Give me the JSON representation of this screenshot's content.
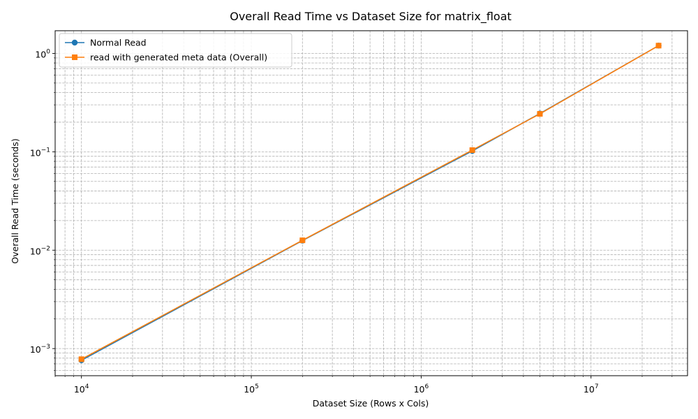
{
  "chart_data": {
    "type": "line",
    "title": "Overall Read Time vs Dataset Size for matrix_float",
    "xlabel": "Dataset Size (Rows x Cols)",
    "ylabel": "Overall Read Time (seconds)",
    "xscale": "log",
    "yscale": "log",
    "xlim": [
      7000,
      37000000
    ],
    "ylim": [
      0.00053,
      1.7
    ],
    "x_ticks": [
      {
        "base": "10",
        "exp": "4",
        "value": 10000
      },
      {
        "base": "10",
        "exp": "5",
        "value": 100000
      },
      {
        "base": "10",
        "exp": "6",
        "value": 1000000
      },
      {
        "base": "10",
        "exp": "7",
        "value": 10000000
      }
    ],
    "y_ticks": [
      {
        "base": "10",
        "exp": "−3",
        "value": 0.001
      },
      {
        "base": "10",
        "exp": "−2",
        "value": 0.01
      },
      {
        "base": "10",
        "exp": "−1",
        "value": 0.1
      },
      {
        "base": "10",
        "exp": "0",
        "value": 1
      }
    ],
    "grid": true,
    "legend_position": "top-left",
    "series": [
      {
        "name": "Normal Read",
        "marker": "circle",
        "color": "#1f77b4",
        "x": [
          10000,
          200000,
          2000000,
          5000000,
          25000000
        ],
        "values": [
          0.00076,
          0.0125,
          0.102,
          0.245,
          1.2
        ]
      },
      {
        "name": "read with generated meta data (Overall)",
        "marker": "square",
        "color": "#ff7f0e",
        "x": [
          10000,
          200000,
          2000000,
          5000000,
          25000000
        ],
        "values": [
          0.00078,
          0.0126,
          0.104,
          0.243,
          1.2
        ]
      }
    ]
  }
}
